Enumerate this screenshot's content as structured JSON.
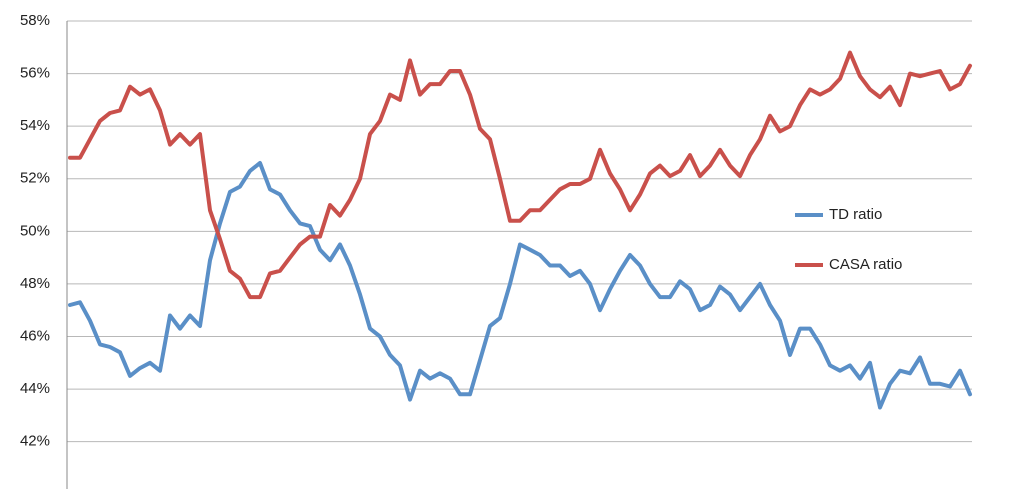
{
  "chart_data": {
    "type": "line",
    "categories": [
      null,
      null,
      null,
      null,
      null,
      null,
      null,
      null,
      null,
      null,
      null,
      null,
      null,
      null,
      null,
      null,
      null,
      null,
      null,
      null,
      null,
      null,
      null,
      null,
      null,
      null,
      null,
      null,
      null,
      null,
      null,
      null,
      null,
      null,
      null,
      null,
      null,
      null,
      null,
      null,
      null,
      null,
      null,
      null,
      null,
      null,
      null,
      null,
      null,
      null,
      null,
      null,
      null,
      null,
      null,
      null,
      null,
      null,
      null,
      null,
      null,
      null,
      null,
      null,
      null,
      null,
      null,
      null,
      null,
      null,
      null,
      null,
      null,
      null,
      null,
      null,
      null,
      null,
      null,
      null,
      null,
      null,
      null,
      null,
      null,
      null,
      null,
      null,
      null,
      null,
      null
    ],
    "series": [
      {
        "name": "TD ratio",
        "color": "#5a8fc7",
        "values": [
          47.2,
          47.3,
          46.6,
          45.7,
          45.6,
          45.4,
          44.5,
          44.8,
          45.0,
          44.7,
          46.8,
          46.3,
          46.8,
          46.4,
          48.9,
          50.3,
          51.5,
          51.7,
          52.3,
          52.6,
          51.6,
          51.4,
          50.8,
          50.3,
          50.2,
          49.3,
          48.9,
          49.5,
          48.7,
          47.6,
          46.3,
          46.0,
          45.3,
          44.9,
          43.6,
          44.7,
          44.4,
          44.6,
          44.4,
          43.8,
          43.8,
          45.1,
          46.4,
          46.7,
          48.0,
          49.5,
          49.3,
          49.1,
          48.7,
          48.7,
          48.3,
          48.5,
          48.0,
          47.0,
          47.8,
          48.5,
          49.1,
          48.7,
          48.0,
          47.5,
          47.5,
          48.1,
          47.8,
          47.0,
          47.2,
          47.9,
          47.6,
          47.0,
          47.5,
          48.0,
          47.2,
          46.6,
          45.3,
          46.3,
          46.3,
          45.7,
          44.9,
          44.7,
          44.9,
          44.4,
          45.0,
          43.3,
          44.2,
          44.7,
          44.6,
          45.2,
          44.2,
          44.2,
          44.1,
          44.7,
          43.8
        ]
      },
      {
        "name": "CASA ratio",
        "color": "#c9504b",
        "values": [
          52.8,
          52.8,
          53.5,
          54.2,
          54.5,
          54.6,
          55.5,
          55.2,
          55.4,
          54.6,
          53.3,
          53.7,
          53.3,
          53.7,
          50.8,
          49.7,
          48.5,
          48.2,
          47.5,
          47.5,
          48.4,
          48.5,
          49.0,
          49.5,
          49.8,
          49.8,
          51.0,
          50.6,
          51.2,
          52.0,
          53.7,
          54.2,
          55.2,
          55.0,
          56.5,
          55.2,
          55.6,
          55.6,
          56.1,
          56.1,
          55.2,
          53.9,
          53.5,
          52.0,
          50.4,
          50.4,
          50.8,
          50.8,
          51.2,
          51.6,
          51.8,
          51.8,
          52.0,
          53.1,
          52.2,
          51.6,
          50.8,
          51.4,
          52.2,
          52.5,
          52.1,
          52.3,
          52.9,
          52.1,
          52.5,
          53.1,
          52.5,
          52.1,
          52.9,
          53.5,
          54.4,
          53.8,
          54.0,
          54.8,
          55.4,
          55.2,
          55.4,
          55.8,
          56.8,
          55.9,
          55.4,
          55.1,
          55.5,
          54.8,
          56.0,
          55.9,
          56.0,
          56.1,
          55.4,
          55.6,
          56.3
        ]
      }
    ],
    "ylim": [
      40.2,
      58
    ],
    "yticks": [
      {
        "value": 42,
        "label": "42%"
      },
      {
        "value": 44,
        "label": "44%"
      },
      {
        "value": 46,
        "label": "46%"
      },
      {
        "value": 48,
        "label": "48%"
      },
      {
        "value": 50,
        "label": "50%"
      },
      {
        "value": 52,
        "label": "52%"
      },
      {
        "value": 54,
        "label": "54%"
      },
      {
        "value": 56,
        "label": "56%"
      },
      {
        "value": 58,
        "label": "58%"
      }
    ],
    "grid": true,
    "legend": "right"
  }
}
